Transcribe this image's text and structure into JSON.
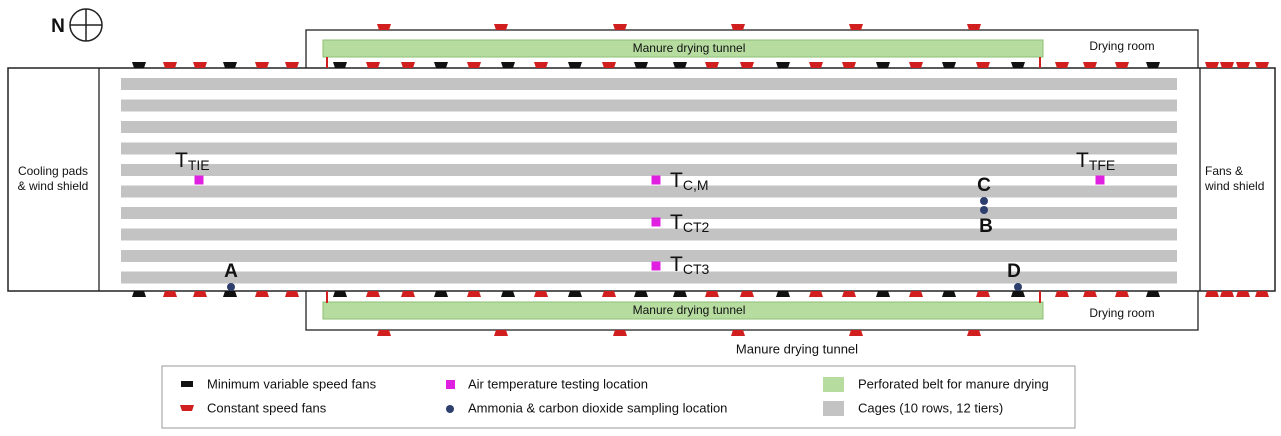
{
  "compass": {
    "label": "N"
  },
  "building": {
    "top_belt": "Manure drying tunnel",
    "bottom_belt": "Manure drying tunnel",
    "top_room": "Drying room",
    "bottom_room": "Drying room",
    "bottom_caption": "Manure drying tunnel",
    "left_end": [
      "Cooling pads",
      "& wind shield"
    ],
    "right_end": [
      "Fans &",
      "wind shield"
    ]
  },
  "temperature_points": [
    {
      "main": "T",
      "sub": "TIE"
    },
    {
      "main": "T",
      "sub": "C,M"
    },
    {
      "main": "T",
      "sub": "CT2"
    },
    {
      "main": "T",
      "sub": "CT3"
    },
    {
      "main": "T",
      "sub": "TFE"
    }
  ],
  "gas_points": [
    "C",
    "B",
    "A",
    "D"
  ],
  "legend": [
    "Minimum variable speed fans",
    "Constant speed fans",
    "Air temperature testing location",
    "Ammonia & carbon dioxide sampling location",
    "Perforated belt for manure drying",
    "Cages (10 rows, 12 tiers)"
  ]
}
